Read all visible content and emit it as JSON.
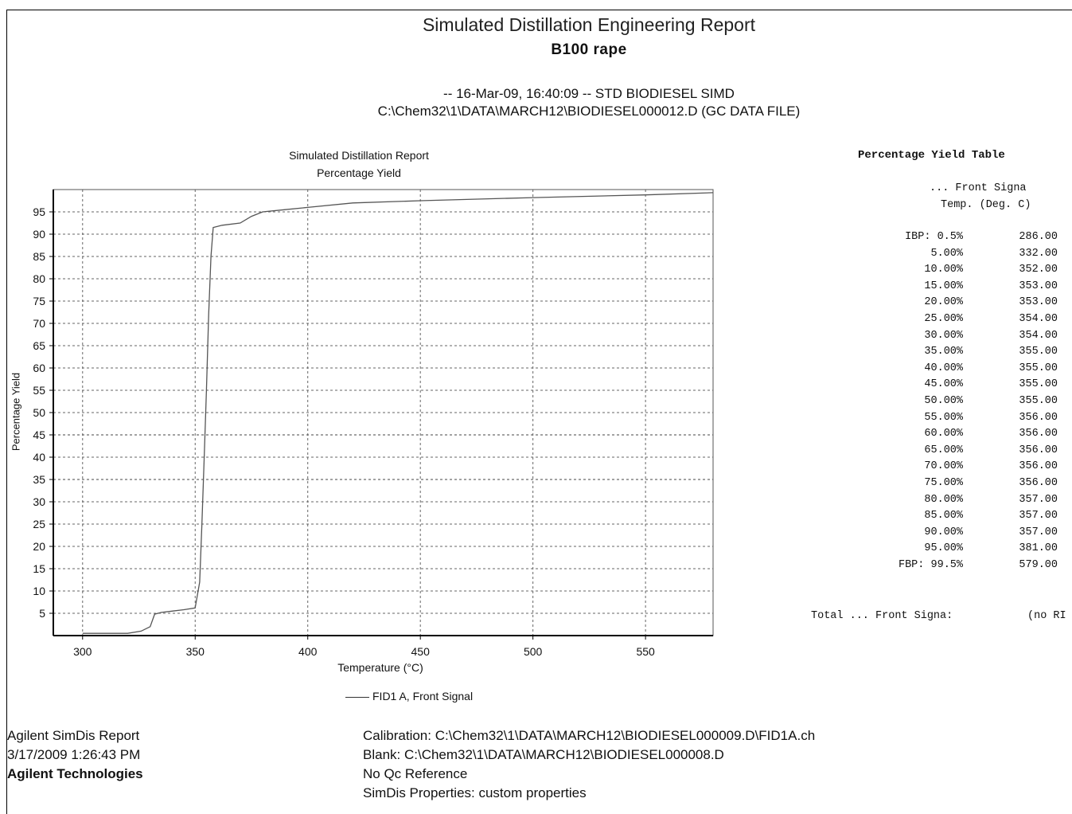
{
  "report": {
    "title": "Simulated Distillation Engineering Report",
    "sample": "B100 rape",
    "run_line": "-- 16-Mar-09, 16:40:09 -- STD BIODIESEL SIMD",
    "file_line": "C:\\Chem32\\1\\DATA\\MARCH12\\BIODIESEL000012.D (GC DATA FILE)"
  },
  "chart_data": {
    "type": "line",
    "title": "Simulated Distillation Report",
    "subtitle": "Percentage Yield",
    "xlabel": "Temperature (°C)",
    "ylabel": "Percentage Yield",
    "xlim": [
      287,
      580
    ],
    "ylim": [
      0,
      100
    ],
    "xticks": [
      300,
      350,
      400,
      450,
      500,
      550
    ],
    "yticks": [
      5,
      10,
      15,
      20,
      25,
      30,
      35,
      40,
      45,
      50,
      55,
      60,
      65,
      70,
      75,
      80,
      85,
      90,
      95
    ],
    "grid": true,
    "legend_position": "bottom-center",
    "series": [
      {
        "name": "FID1 A, Front Signal",
        "color": "#555555",
        "x": [
          300,
          310,
          320,
          326,
          330,
          332,
          335,
          340,
          345,
          350,
          352,
          353,
          354,
          355,
          356,
          357,
          358,
          362,
          370,
          375,
          380,
          390,
          400,
          420,
          450,
          500,
          550,
          580
        ],
        "y": [
          0.5,
          0.5,
          0.5,
          1.0,
          2.0,
          4.8,
          5.2,
          5.5,
          5.8,
          6.2,
          12,
          25,
          40,
          55,
          72,
          85,
          91.5,
          92,
          92.5,
          94,
          95,
          95.5,
          96,
          97,
          97.5,
          98.2,
          98.8,
          99.3
        ]
      }
    ]
  },
  "yield_table": {
    "title": "Percentage Yield Table",
    "col_header_1": "... Front Signa",
    "col_header_2": "Temp. (Deg. C)",
    "rows": [
      {
        "pct": "IBP: 0.5%",
        "temp": "286.00"
      },
      {
        "pct": "5.00%",
        "temp": "332.00"
      },
      {
        "pct": "10.00%",
        "temp": "352.00"
      },
      {
        "pct": "15.00%",
        "temp": "353.00"
      },
      {
        "pct": "20.00%",
        "temp": "353.00"
      },
      {
        "pct": "25.00%",
        "temp": "354.00"
      },
      {
        "pct": "30.00%",
        "temp": "354.00"
      },
      {
        "pct": "35.00%",
        "temp": "355.00"
      },
      {
        "pct": "40.00%",
        "temp": "355.00"
      },
      {
        "pct": "45.00%",
        "temp": "355.00"
      },
      {
        "pct": "50.00%",
        "temp": "355.00"
      },
      {
        "pct": "55.00%",
        "temp": "356.00"
      },
      {
        "pct": "60.00%",
        "temp": "356.00"
      },
      {
        "pct": "65.00%",
        "temp": "356.00"
      },
      {
        "pct": "70.00%",
        "temp": "356.00"
      },
      {
        "pct": "75.00%",
        "temp": "356.00"
      },
      {
        "pct": "80.00%",
        "temp": "357.00"
      },
      {
        "pct": "85.00%",
        "temp": "357.00"
      },
      {
        "pct": "90.00%",
        "temp": "357.00"
      },
      {
        "pct": "95.00%",
        "temp": "381.00"
      },
      {
        "pct": "FBP: 99.5%",
        "temp": "579.00"
      }
    ],
    "total_label": "Total ... Front Signa:",
    "total_value": "(no RI"
  },
  "footer": {
    "left": {
      "line1": "Agilent SimDis Report",
      "line2": "3/17/2009 1:26:43 PM",
      "company": "Agilent Technologies"
    },
    "right": {
      "calibration": "Calibration: C:\\Chem32\\1\\DATA\\MARCH12\\BIODIESEL000009.D\\FID1A.ch",
      "blank": "Blank: C:\\Chem32\\1\\DATA\\MARCH12\\BIODIESEL000008.D",
      "qc": "No Qc Reference",
      "properties": "SimDis Properties: custom properties"
    }
  }
}
